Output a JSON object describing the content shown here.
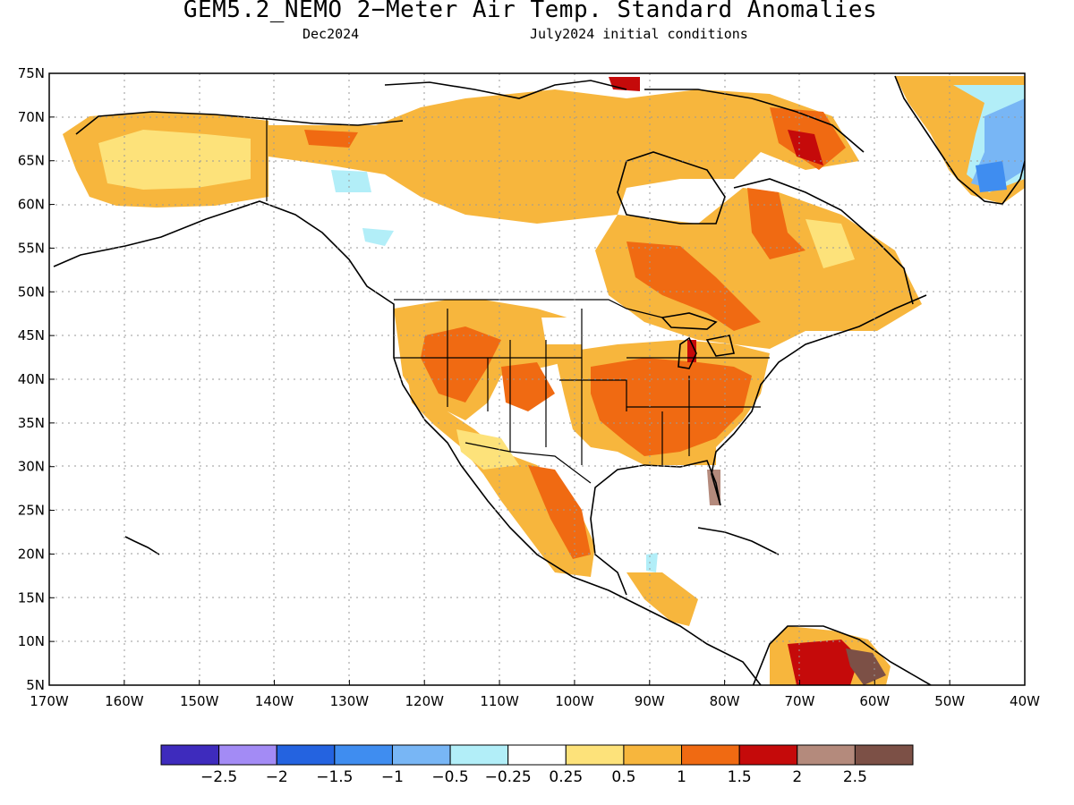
{
  "title": "GEM5.2_NEMO 2−Meter Air Temp. Standard Anomalies",
  "subtitle_left": "Dec2024",
  "subtitle_right": "July2024 initial conditions",
  "lat_labels": [
    "75N",
    "70N",
    "65N",
    "60N",
    "55N",
    "50N",
    "45N",
    "40N",
    "35N",
    "30N",
    "25N",
    "20N",
    "15N",
    "10N",
    "5N"
  ],
  "lon_labels": [
    "170W",
    "160W",
    "150W",
    "140W",
    "130W",
    "120W",
    "110W",
    "100W",
    "90W",
    "80W",
    "70W",
    "60W",
    "50W",
    "40W"
  ],
  "colorbar": {
    "colors": [
      "#3e2bbd",
      "#a38bf5",
      "#2463e0",
      "#3f8df0",
      "#78b6f5",
      "#b2eef8",
      "#ffffff",
      "#fde27a",
      "#f7b63d",
      "#f06a12",
      "#c50a0a",
      "#b48a7c",
      "#7c5046"
    ],
    "labels": [
      "−2.5",
      "−2",
      "−1.5",
      "−1",
      "−0.5",
      "−0.25",
      "0.25",
      "0.5",
      "1",
      "1.5",
      "2",
      "2.5"
    ]
  },
  "colors": {
    "land_outline": "#000000",
    "state_lines": "#000000",
    "grid": "#888888"
  }
}
